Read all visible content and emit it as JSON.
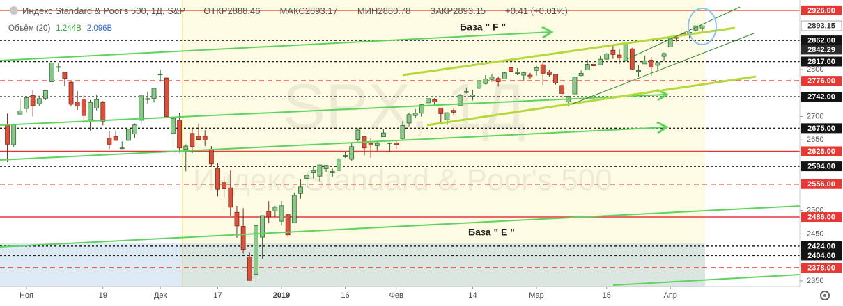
{
  "chart_data": {
    "type": "candlestick",
    "title": "Индекс Standard & Poor's 500, 1Д, S&P",
    "ohlc_header": [
      {
        "label": "ОТКР",
        "value": 2888.46
      },
      {
        "label": "МАКС",
        "value": 2893.17
      },
      {
        "label": "МИН",
        "value": 2880.78
      },
      {
        "label": "ЗАКР",
        "value": 2893.15
      }
    ],
    "change": "+0.41 (+0.01%)",
    "volume_label": "Объём (20)",
    "volume_values": [
      "1.244B",
      "2.096B"
    ],
    "watermark": [
      "SPX, 1Д",
      "Индекс Standard & Poor's 500"
    ],
    "annotations": [
      "База  \" F \"",
      "База  \" E \""
    ],
    "up_color": "#8cc78c",
    "down_color": "#d9513b",
    "xlim": [
      -1.15,
      124.3
    ],
    "xticks": [
      {
        "value": 3,
        "label": "Ноя"
      },
      {
        "value": 15,
        "label": "19"
      },
      {
        "value": 24,
        "label": "Дек"
      },
      {
        "value": 33,
        "label": "17"
      },
      {
        "value": 43,
        "label": "2019"
      },
      {
        "value": 53,
        "label": "16"
      },
      {
        "value": 61,
        "label": "Фев"
      },
      {
        "value": 73,
        "label": "14"
      },
      {
        "value": 83,
        "label": "Мар"
      },
      {
        "value": 94,
        "label": "15"
      },
      {
        "value": 104,
        "label": "Апр"
      }
    ],
    "ylim": [
      2338,
      2948
    ],
    "yticks": [
      2350,
      2450,
      2500,
      2650,
      2700,
      2800
    ],
    "levels": [
      {
        "value": 2926,
        "label": "2926.00",
        "style": "red-solid"
      },
      {
        "value": 2862,
        "label": "2862.00",
        "style": "black-dashed"
      },
      {
        "value": 2842.29,
        "label": "2842.29",
        "style": "none"
      },
      {
        "value": 2817,
        "label": "2817.00",
        "style": "black-dashed"
      },
      {
        "value": 2776,
        "label": "2776.00",
        "style": "red-dashed"
      },
      {
        "value": 2742,
        "label": "2742.00",
        "style": "black-dashed"
      },
      {
        "value": 2675,
        "label": "2675.00",
        "style": "black-dashed"
      },
      {
        "value": 2626,
        "label": "2626.00",
        "style": "red-solid"
      },
      {
        "value": 2594,
        "label": "2594.00",
        "style": "black-dashed"
      },
      {
        "value": 2556,
        "label": "2556.00",
        "style": "red-dashed"
      },
      {
        "value": 2486,
        "label": "2486.00",
        "style": "red-solid"
      },
      {
        "value": 2424,
        "label": "2424.00",
        "style": "black-dashed"
      },
      {
        "value": 2404,
        "label": "2404.00",
        "style": "black-dashed"
      },
      {
        "value": 2378,
        "label": "2378.00",
        "style": "red-dashed"
      }
    ],
    "last_price": {
      "value": 2893.15,
      "label": "2893.15"
    },
    "candles": {
      "open": [
        2682,
        2640,
        2705,
        2717,
        2745,
        2727,
        2738,
        2774,
        2806,
        2794,
        2773,
        2731,
        2737,
        2693,
        2718,
        2730,
        2654,
        2657,
        2633,
        2649,
        2663,
        2692,
        2736,
        2738,
        2790,
        2782,
        2664,
        2692,
        2630,
        2664,
        2658,
        2658,
        2630,
        2590,
        2559,
        2548,
        2496,
        2466,
        2401,
        2364,
        2443,
        2498,
        2499,
        2477,
        2491,
        2474,
        2536,
        2568,
        2580,
        2573,
        2589,
        2580,
        2585,
        2614,
        2609,
        2651,
        2657,
        2643,
        2638,
        2657,
        2644,
        2644,
        2653,
        2686,
        2702,
        2707,
        2729,
        2736,
        2718,
        2693,
        2713,
        2723,
        2751,
        2743,
        2760,
        2770,
        2779,
        2781,
        2780,
        2804,
        2793,
        2788,
        2788,
        2798,
        2810,
        2795,
        2790,
        2766,
        2731,
        2748,
        2787,
        2799,
        2811,
        2810,
        2822,
        2841,
        2831,
        2819,
        2844,
        2796,
        2812,
        2820,
        2809,
        2828,
        2848,
        2868,
        2876,
        2874,
        2884,
        2888.46
      ],
      "high": [
        2706,
        2685,
        2736,
        2741,
        2756,
        2744,
        2757,
        2815,
        2814,
        2794,
        2776,
        2754,
        2747,
        2735,
        2747,
        2733,
        2669,
        2670,
        2647,
        2674,
        2685,
        2744,
        2753,
        2760,
        2800,
        2785,
        2696,
        2708,
        2641,
        2675,
        2685,
        2671,
        2637,
        2601,
        2573,
        2585,
        2510,
        2505,
        2410,
        2467,
        2489,
        2520,
        2510,
        2520,
        2493,
        2538,
        2566,
        2580,
        2595,
        2597,
        2597,
        2589,
        2613,
        2625,
        2645,
        2675,
        2657,
        2653,
        2647,
        2673,
        2644,
        2650,
        2690,
        2708,
        2716,
        2725,
        2738,
        2739,
        2718,
        2709,
        2718,
        2748,
        2761,
        2757,
        2776,
        2788,
        2791,
        2785,
        2794,
        2813,
        2803,
        2795,
        2793,
        2808,
        2816,
        2799,
        2790,
        2768,
        2744,
        2785,
        2798,
        2821,
        2816,
        2830,
        2835,
        2852,
        2843,
        2860,
        2846,
        2809,
        2830,
        2826,
        2819,
        2836,
        2868,
        2872,
        2885,
        2881,
        2893,
        2893.17
      ],
      "low": [
        2603,
        2635,
        2705,
        2709,
        2700,
        2723,
        2735,
        2766,
        2795,
        2765,
        2722,
        2714,
        2685,
        2670,
        2713,
        2681,
        2631,
        2649,
        2631,
        2649,
        2655,
        2684,
        2727,
        2730,
        2774,
        2697,
        2621,
        2623,
        2583,
        2622,
        2650,
        2637,
        2593,
        2530,
        2528,
        2489,
        2442,
        2408,
        2351,
        2347,
        2397,
        2473,
        2487,
        2468,
        2444,
        2474,
        2525,
        2548,
        2568,
        2562,
        2581,
        2571,
        2585,
        2612,
        2606,
        2647,
        2617,
        2612,
        2627,
        2657,
        2624,
        2631,
        2648,
        2679,
        2697,
        2700,
        2725,
        2725,
        2687,
        2682,
        2704,
        2723,
        2749,
        2734,
        2760,
        2768,
        2774,
        2764,
        2780,
        2794,
        2788,
        2776,
        2780,
        2787,
        2767,
        2785,
        2768,
        2738,
        2722,
        2748,
        2786,
        2799,
        2804,
        2810,
        2821,
        2823,
        2812,
        2817,
        2800,
        2785,
        2812,
        2787,
        2799,
        2819,
        2848,
        2860,
        2866,
        2866,
        2882,
        2880.78
      ],
      "close": [
        2641,
        2682,
        2712,
        2740,
        2723,
        2738,
        2755,
        2814,
        2806,
        2781,
        2726,
        2722,
        2702,
        2730,
        2736,
        2690,
        2641,
        2649,
        2633,
        2673,
        2682,
        2744,
        2738,
        2760,
        2790,
        2700,
        2696,
        2633,
        2637,
        2636,
        2651,
        2650,
        2599,
        2545,
        2546,
        2507,
        2467,
        2417,
        2351,
        2468,
        2489,
        2486,
        2507,
        2510,
        2448,
        2532,
        2550,
        2575,
        2585,
        2597,
        2596,
        2583,
        2610,
        2617,
        2636,
        2671,
        2633,
        2639,
        2643,
        2665,
        2644,
        2640,
        2681,
        2704,
        2707,
        2725,
        2738,
        2731,
        2706,
        2708,
        2709,
        2745,
        2753,
        2746,
        2776,
        2780,
        2784,
        2774,
        2793,
        2796,
        2793,
        2793,
        2784,
        2804,
        2792,
        2789,
        2771,
        2749,
        2743,
        2784,
        2792,
        2811,
        2808,
        2822,
        2833,
        2832,
        2824,
        2855,
        2801,
        2798,
        2818,
        2805,
        2815,
        2834,
        2867,
        2867,
        2873,
        2879,
        2893,
        2893.15
      ]
    }
  }
}
